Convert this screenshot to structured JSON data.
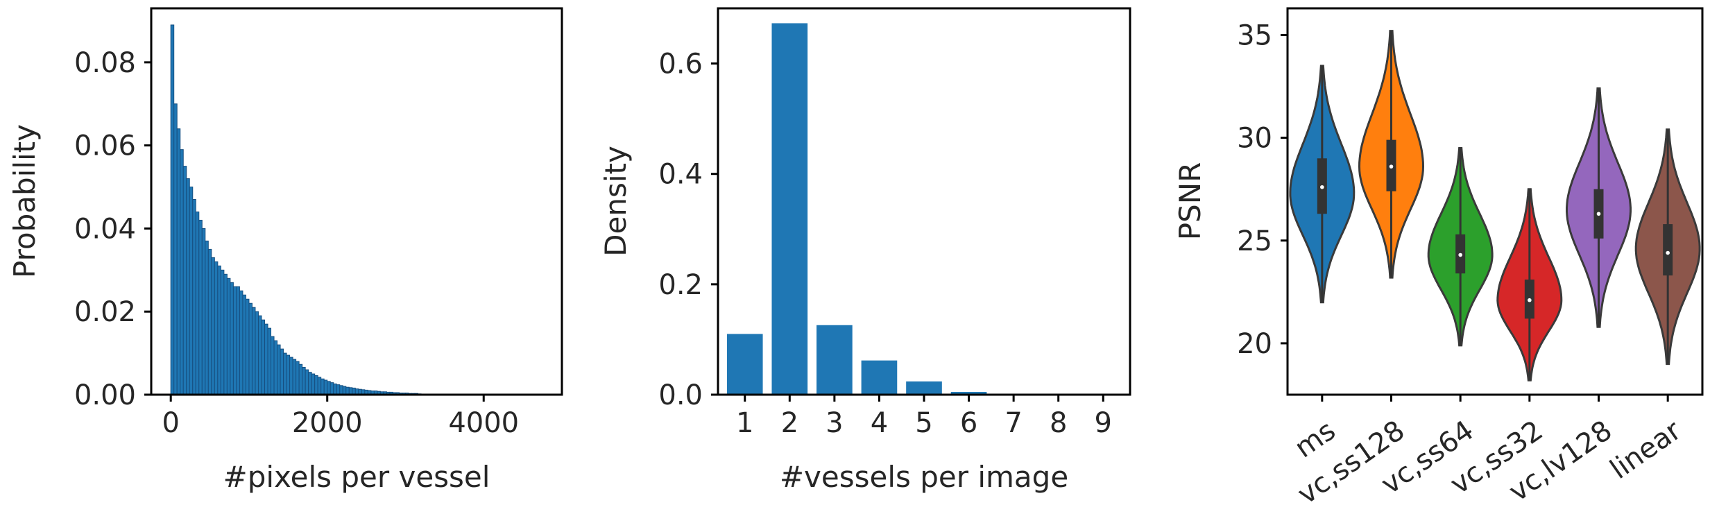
{
  "colors": {
    "hist": "#1f77b4",
    "hist_edge": "#174f80",
    "bar": "#1f77b4",
    "violin_edge": "#3a3a3a",
    "box": "#333333"
  },
  "chart_data": [
    {
      "type": "bar",
      "subtype": "histogram",
      "xlabel": "#pixels per vessel",
      "ylabel": "Probability",
      "xlim": [
        -250,
        5000
      ],
      "ylim": [
        0,
        0.093
      ],
      "xticks": [
        0,
        2000,
        4000
      ],
      "xtick_labels": [
        "0",
        "2000",
        "4000"
      ],
      "yticks": [
        0.0,
        0.02,
        0.04,
        0.06,
        0.08
      ],
      "ytick_labels": [
        "0.00",
        "0.02",
        "0.04",
        "0.06",
        "0.08"
      ],
      "bin_width": 40,
      "bin_start": 0,
      "values": [
        0.089,
        0.07,
        0.064,
        0.059,
        0.055,
        0.052,
        0.05,
        0.047,
        0.044,
        0.042,
        0.04,
        0.037,
        0.035,
        0.033,
        0.032,
        0.031,
        0.03,
        0.029,
        0.028,
        0.027,
        0.026,
        0.026,
        0.025,
        0.024,
        0.023,
        0.022,
        0.021,
        0.02,
        0.019,
        0.018,
        0.017,
        0.016,
        0.014,
        0.013,
        0.012,
        0.011,
        0.01,
        0.0095,
        0.009,
        0.0085,
        0.008,
        0.0073,
        0.0066,
        0.006,
        0.0054,
        0.005,
        0.0046,
        0.0042,
        0.0038,
        0.0035,
        0.0032,
        0.0029,
        0.0026,
        0.0024,
        0.0022,
        0.002,
        0.0018,
        0.0017,
        0.0016,
        0.0014,
        0.0013,
        0.0012,
        0.0011,
        0.001,
        0.0009,
        0.0009,
        0.0008,
        0.0007,
        0.0007,
        0.0006,
        0.0006,
        0.0005,
        0.0005,
        0.0004,
        0.0004,
        0.0004,
        0.0003,
        0.0003,
        0.0003,
        0.0002
      ]
    },
    {
      "type": "bar",
      "xlabel": "#vessels per image",
      "ylabel": "Density",
      "categories": [
        "1",
        "2",
        "3",
        "4",
        "5",
        "6",
        "7",
        "8",
        "9"
      ],
      "values": [
        0.11,
        0.673,
        0.126,
        0.062,
        0.024,
        0.005,
        0.001,
        0.0005,
        0.0003
      ],
      "ylim": [
        0,
        0.7
      ],
      "yticks": [
        0.0,
        0.2,
        0.4,
        0.6
      ],
      "ytick_labels": [
        "0.0",
        "0.2",
        "0.4",
        "0.6"
      ]
    },
    {
      "type": "violin",
      "xlabel": "",
      "ylabel": "PSNR",
      "ylim": [
        17.5,
        36.3
      ],
      "yticks": [
        20,
        25,
        30,
        35
      ],
      "ytick_labels": [
        "20",
        "25",
        "30",
        "35"
      ],
      "categories": [
        "ms",
        "vc,ss128",
        "vc,ss64",
        "vc,ss32",
        "vc,lv128",
        "linear"
      ],
      "series": [
        {
          "name": "ms",
          "color": "#1f77b4",
          "min": 22.0,
          "q1": 26.3,
          "median": 27.6,
          "q3": 29.0,
          "max": 33.5,
          "mode": 27.3
        },
        {
          "name": "vc,ss128",
          "color": "#ff7f0e",
          "min": 23.2,
          "q1": 27.4,
          "median": 28.6,
          "q3": 29.9,
          "max": 35.2,
          "mode": 28.6
        },
        {
          "name": "vc,ss64",
          "color": "#2ca02c",
          "min": 19.9,
          "q1": 23.4,
          "median": 24.3,
          "q3": 25.3,
          "max": 29.5,
          "mode": 24.3
        },
        {
          "name": "vc,ss32",
          "color": "#d62728",
          "min": 18.2,
          "q1": 21.2,
          "median": 22.1,
          "q3": 23.1,
          "max": 27.5,
          "mode": 22.1
        },
        {
          "name": "vc,lv128",
          "color": "#9467bd",
          "min": 20.8,
          "q1": 25.1,
          "median": 26.3,
          "q3": 27.5,
          "max": 32.4,
          "mode": 26.5
        },
        {
          "name": "linear",
          "color": "#8c564b",
          "min": 19.0,
          "q1": 23.3,
          "median": 24.4,
          "q3": 25.8,
          "max": 30.4,
          "mode": 24.6
        }
      ]
    }
  ]
}
